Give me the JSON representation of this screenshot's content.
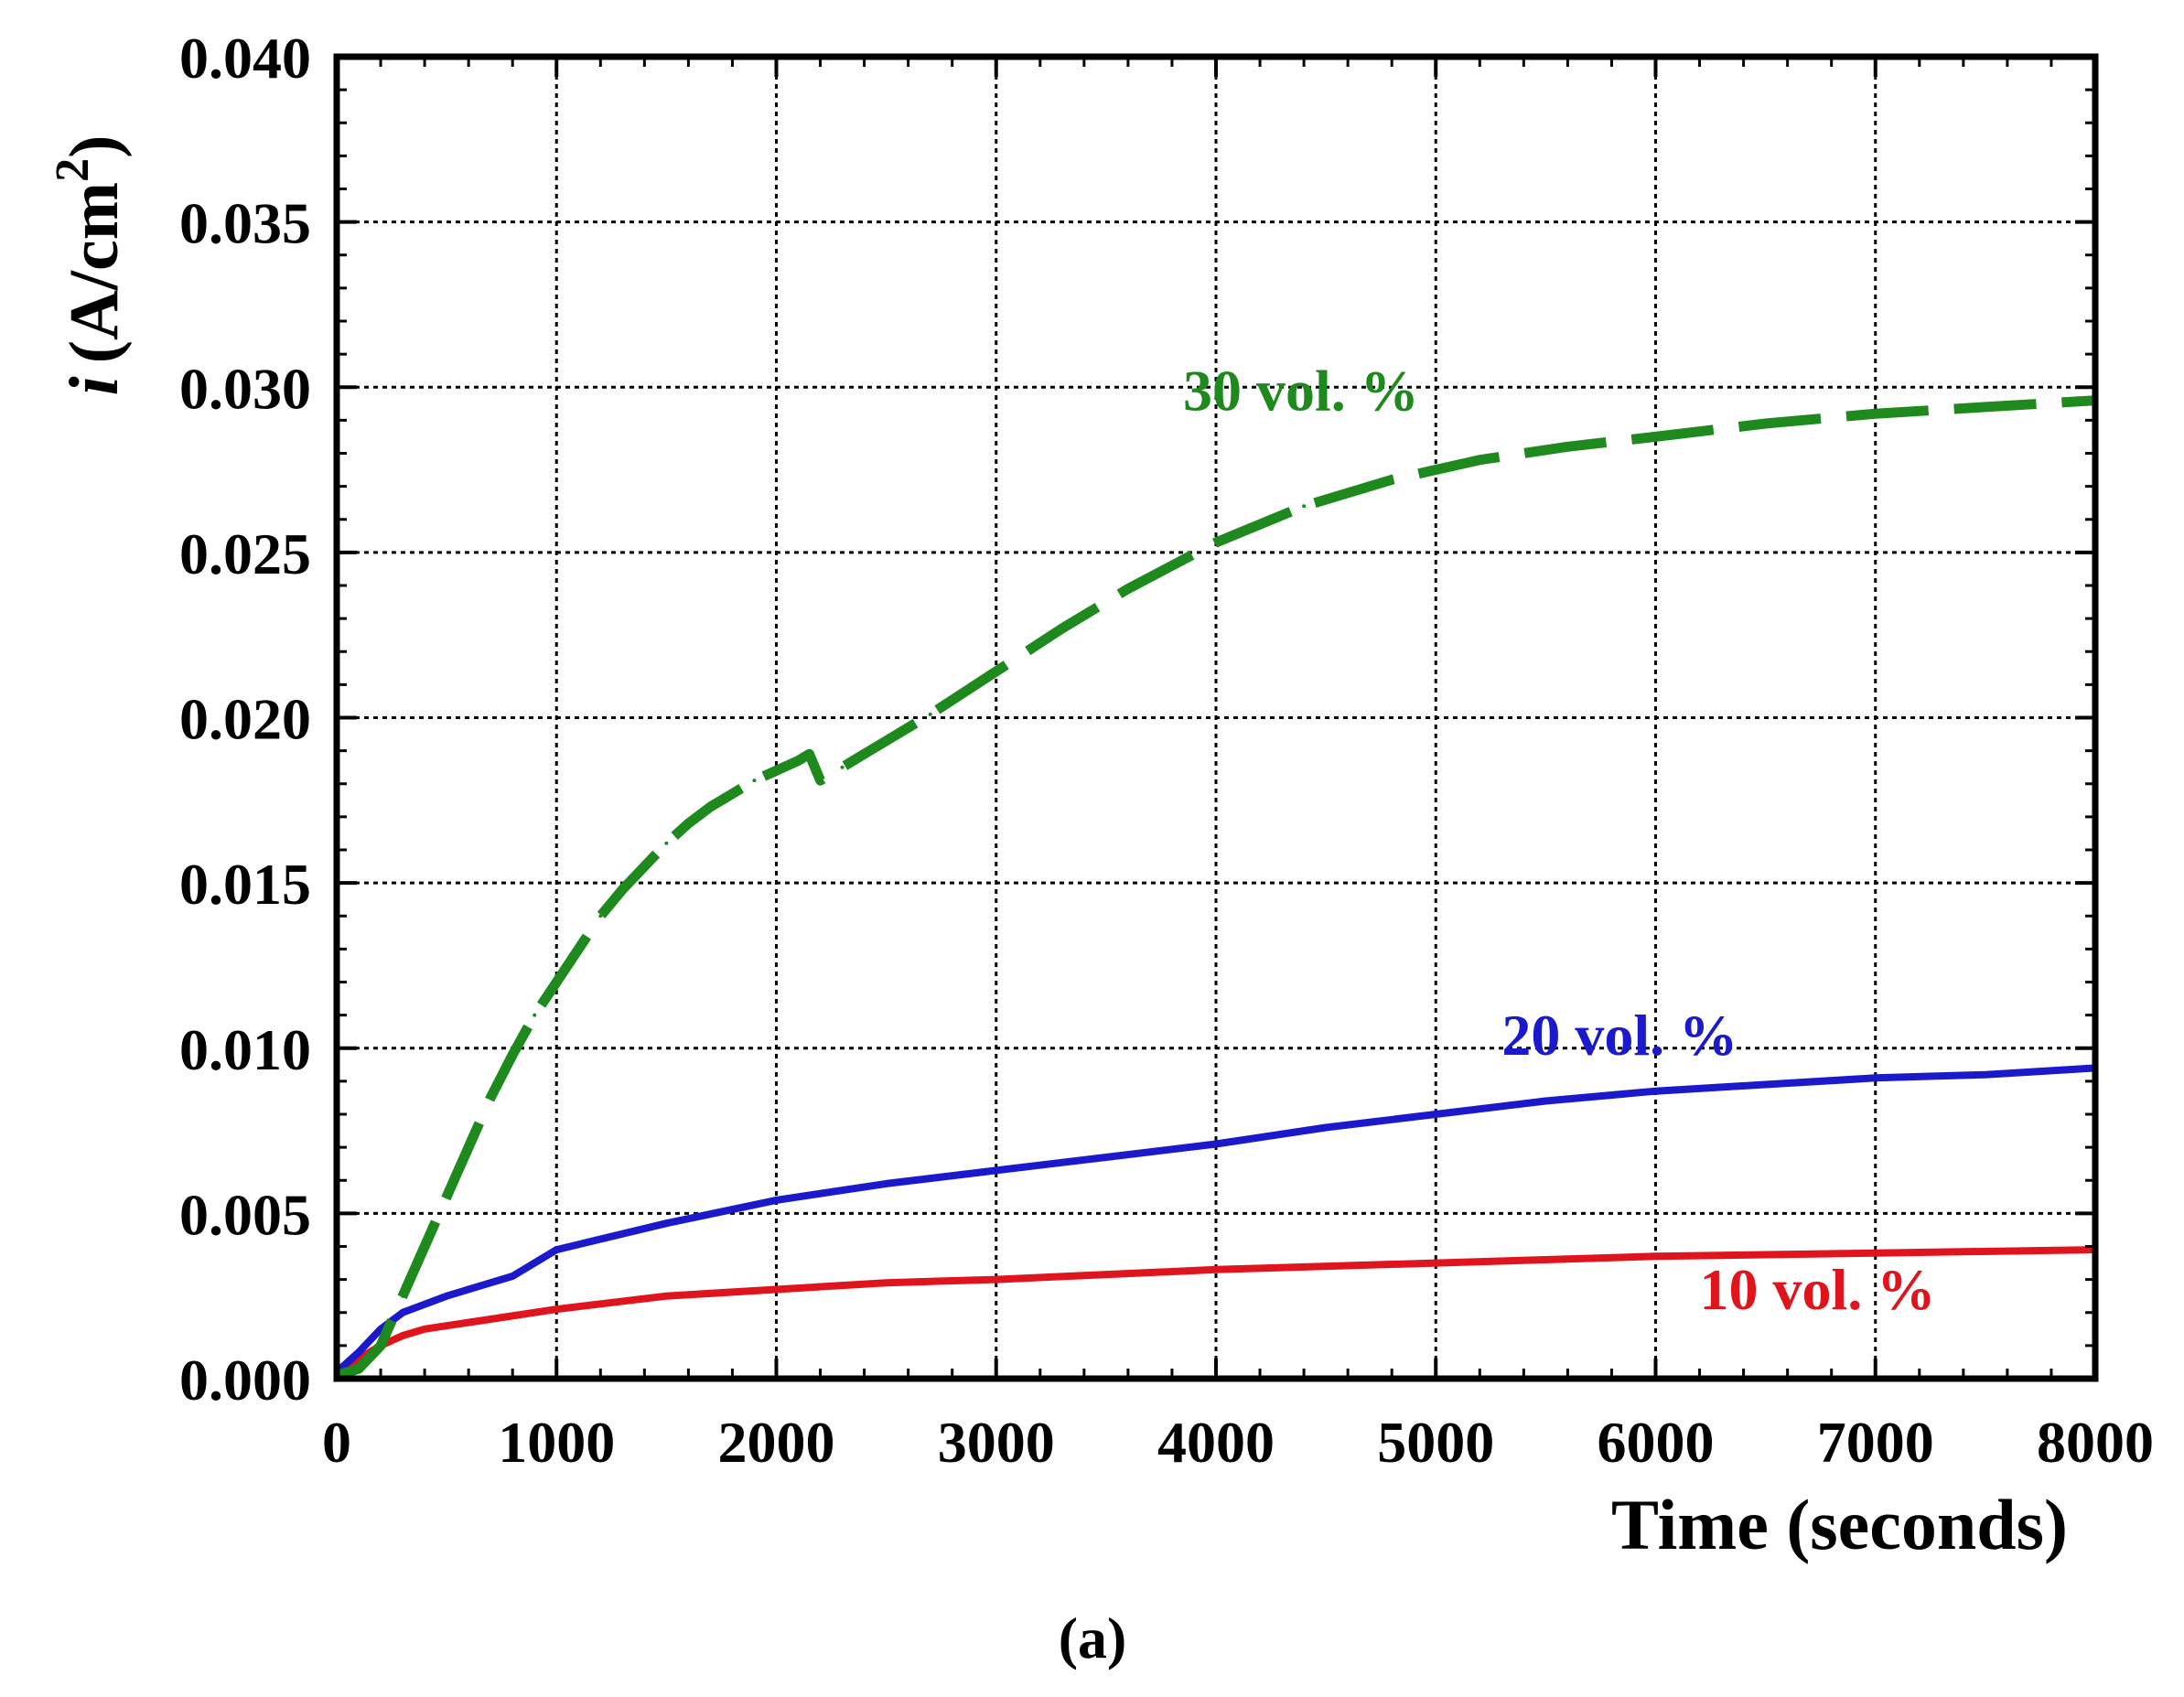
{
  "chart_data": {
    "type": "line",
    "title": "",
    "caption": "(a)",
    "xlabel": "Time (seconds)",
    "ylabel_italic": "i",
    "ylabel_unit": "(A/cm",
    "ylabel_superscript": "2",
    "ylabel_close": ")",
    "xlim": [
      0,
      8000
    ],
    "ylim": [
      0,
      0.04
    ],
    "xticks": [
      0,
      1000,
      2000,
      3000,
      4000,
      5000,
      6000,
      7000,
      8000
    ],
    "xtick_labels": [
      "0",
      "1000",
      "2000",
      "3000",
      "4000",
      "5000",
      "6000",
      "7000",
      "8000"
    ],
    "yticks": [
      0,
      0.005,
      0.01,
      0.015,
      0.02,
      0.025,
      0.03,
      0.035,
      0.04
    ],
    "ytick_labels": [
      "0.000",
      "0.005",
      "0.010",
      "0.015",
      "0.020",
      "0.025",
      "0.030",
      "0.035",
      "0.040"
    ],
    "grid": true,
    "series": [
      {
        "name": "10 vol. %",
        "label": "10 vol. %",
        "color": "#e0141c",
        "style": "solid",
        "label_at": [
          6200,
          0.0021
        ],
        "x": [
          0,
          100,
          200,
          300,
          400,
          500,
          700,
          1000,
          1500,
          2000,
          2500,
          3000,
          4000,
          5000,
          6000,
          7000,
          8000
        ],
        "y": [
          0.0002,
          0.0006,
          0.001,
          0.0013,
          0.0015,
          0.0016,
          0.0018,
          0.0021,
          0.0025,
          0.0027,
          0.0029,
          0.003,
          0.0033,
          0.0035,
          0.0037,
          0.0038,
          0.0039
        ]
      },
      {
        "name": "20 vol. %",
        "label": "20 vol. %",
        "color": "#1a1acc",
        "style": "solid",
        "label_at": [
          5300,
          0.0098
        ],
        "x": [
          0,
          100,
          200,
          300,
          500,
          700,
          800,
          900,
          1000,
          1500,
          2000,
          2500,
          3000,
          3500,
          4000,
          4500,
          5000,
          5500,
          6000,
          6500,
          7000,
          7500,
          8000
        ],
        "y": [
          0.0002,
          0.0008,
          0.0015,
          0.002,
          0.0025,
          0.0029,
          0.0031,
          0.0035,
          0.0039,
          0.0047,
          0.0054,
          0.0059,
          0.0063,
          0.0067,
          0.0071,
          0.0076,
          0.008,
          0.0084,
          0.0087,
          0.0089,
          0.0091,
          0.0092,
          0.0094
        ]
      },
      {
        "name": "30 vol. %",
        "label": "30 vol. %",
        "color": "#1e8a1e",
        "style": "dashed",
        "label_at": [
          3850,
          0.0293
        ],
        "x": [
          0,
          100,
          200,
          300,
          400,
          500,
          600,
          700,
          800,
          900,
          1000,
          1100,
          1200,
          1300,
          1400,
          1500,
          1600,
          1700,
          1800,
          1900,
          2000,
          2100,
          2150,
          2200,
          2300,
          2400,
          2500,
          2700,
          3000,
          3300,
          3600,
          4000,
          4400,
          4800,
          5200,
          5600,
          6000,
          6500,
          7000,
          7500,
          8000
        ],
        "y": [
          0.0001,
          0.0003,
          0.001,
          0.0025,
          0.004,
          0.0055,
          0.007,
          0.0085,
          0.0098,
          0.011,
          0.012,
          0.013,
          0.014,
          0.0148,
          0.0155,
          0.0162,
          0.0168,
          0.0173,
          0.0177,
          0.0181,
          0.0184,
          0.0187,
          0.0189,
          0.0181,
          0.0185,
          0.0189,
          0.0193,
          0.0201,
          0.0214,
          0.0227,
          0.0239,
          0.0253,
          0.0264,
          0.0272,
          0.0278,
          0.0282,
          0.0285,
          0.0289,
          0.0292,
          0.0294,
          0.0296
        ]
      }
    ]
  }
}
